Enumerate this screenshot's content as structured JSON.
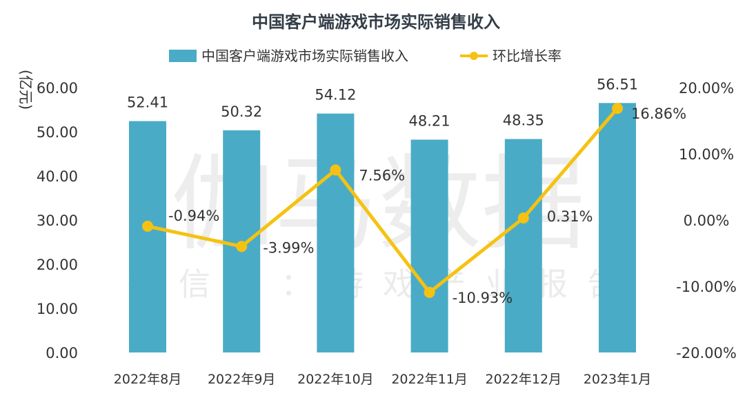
{
  "watermark": {
    "main": "伽马数据",
    "sub": "微信号：游戏产业报告"
  },
  "colors": {
    "bar": "#4aabc6",
    "line": "#f5c211",
    "text": "#333333",
    "title": "#333d47"
  },
  "chart_data": {
    "type": "bar",
    "title": "中国客户端游戏市场实际销售收入",
    "ylabel": "(亿元)",
    "y2label": "",
    "categories": [
      "2022年8月",
      "2022年9月",
      "2022年10月",
      "2022年11月",
      "2022年12月",
      "2023年1月"
    ],
    "series": [
      {
        "name": "中国客户端游戏市场实际销售收入",
        "type": "bar",
        "axis": "left",
        "values": [
          52.41,
          50.32,
          54.12,
          48.21,
          48.35,
          56.51
        ],
        "labels": [
          "52.41",
          "50.32",
          "54.12",
          "48.21",
          "48.35",
          "56.51"
        ]
      },
      {
        "name": "环比增长率",
        "type": "line",
        "axis": "right",
        "values": [
          -0.94,
          -3.99,
          7.56,
          -10.93,
          0.31,
          16.86
        ],
        "labels": [
          "-0.94%",
          "-3.99%",
          "7.56%",
          "-10.93%",
          "0.31%",
          "16.86%"
        ]
      }
    ],
    "y_left": {
      "min": 0,
      "max": 60,
      "ticks": [
        0,
        10,
        20,
        30,
        40,
        50,
        60
      ],
      "tick_labels": [
        "0.00",
        "10.00",
        "20.00",
        "30.00",
        "40.00",
        "50.00",
        "60.00"
      ]
    },
    "y_right": {
      "min": -20,
      "max": 20,
      "ticks": [
        -20,
        -10,
        0,
        10,
        20
      ],
      "tick_labels": [
        "-20.00%",
        "-10.00%",
        "0.00%",
        "10.00%",
        "20.00%"
      ]
    },
    "grid": false,
    "legend_position": "top"
  }
}
